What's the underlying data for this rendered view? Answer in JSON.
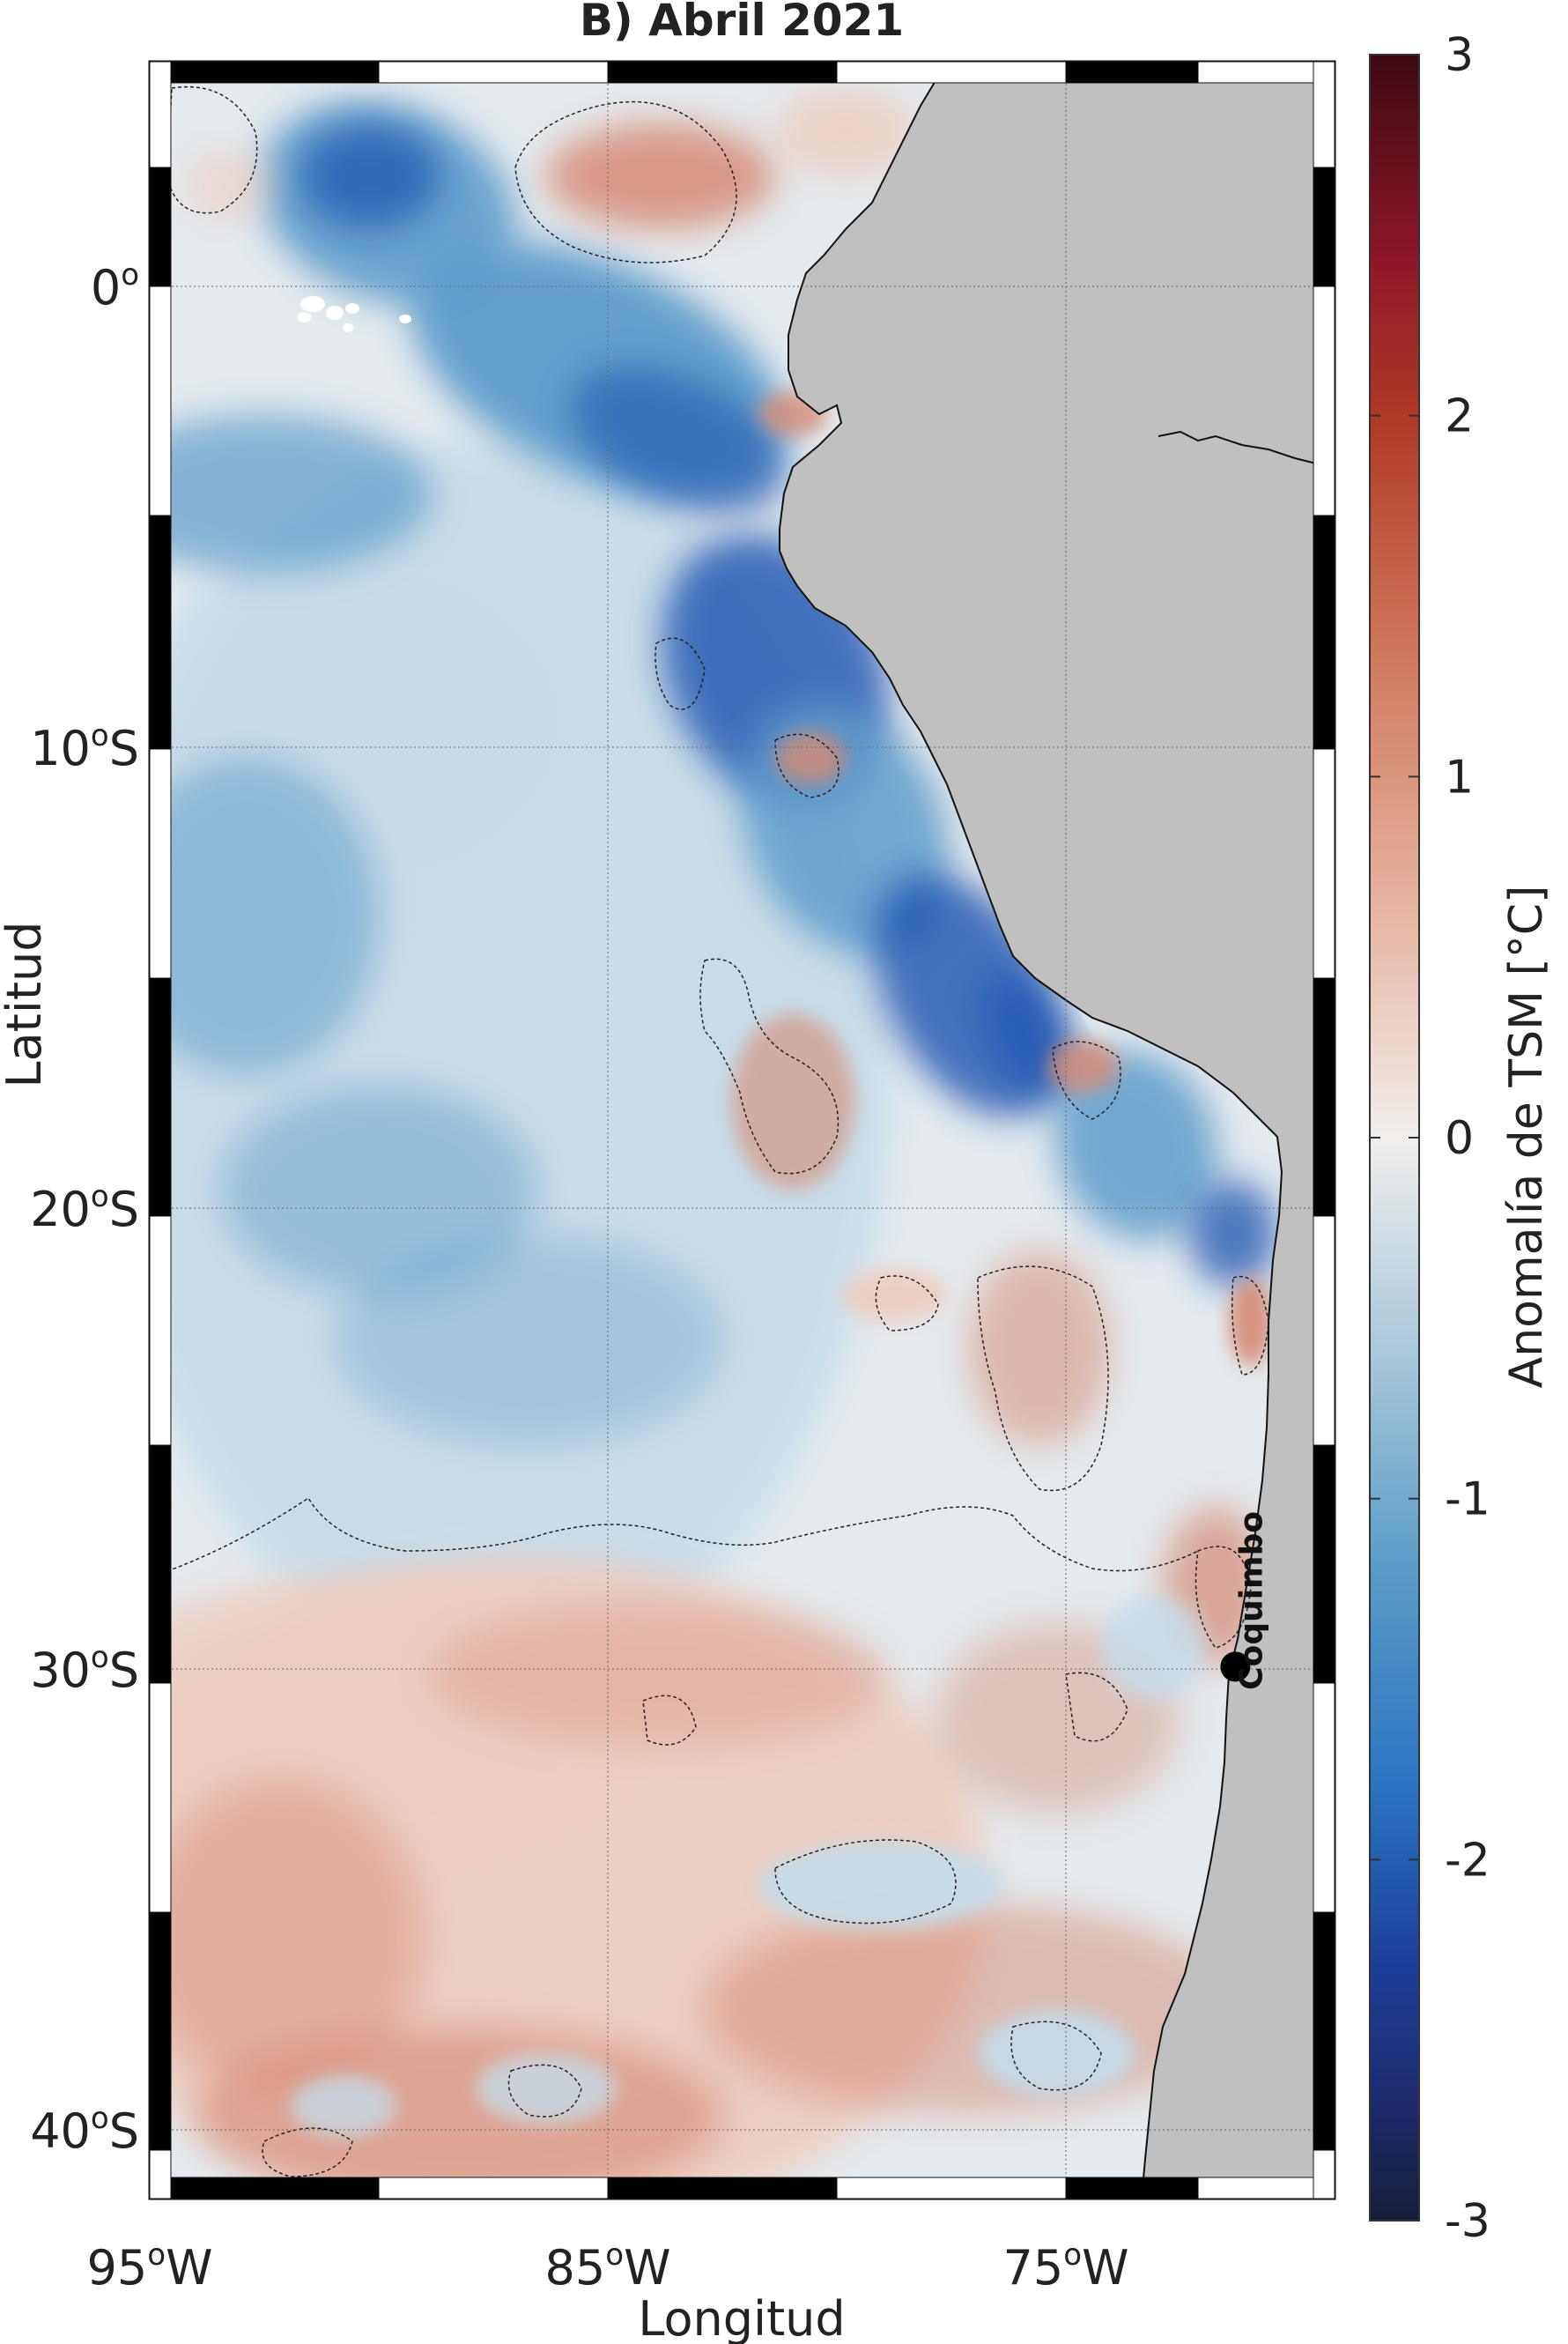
{
  "title": "B) Abril 2021",
  "axes": {
    "xlabel": "Longitud",
    "ylabel": "Latitud",
    "x_ticks": [
      {
        "lon": -95,
        "main": "95",
        "sup": "o",
        "dir": "W"
      },
      {
        "lon": -85,
        "main": "85",
        "sup": "o",
        "dir": "W"
      },
      {
        "lon": -75,
        "main": "75",
        "sup": "o",
        "dir": "W"
      }
    ],
    "y_ticks": [
      {
        "lat": 0,
        "main": "0",
        "sup": "o",
        "dir": ""
      },
      {
        "lat": -10,
        "main": "10",
        "sup": "o",
        "dir": "S"
      },
      {
        "lat": -20,
        "main": "20",
        "sup": "o",
        "dir": "S"
      },
      {
        "lat": -30,
        "main": "30",
        "sup": "o",
        "dir": "S"
      },
      {
        "lat": -40,
        "main": "40",
        "sup": "o",
        "dir": "S"
      }
    ],
    "lon_range": [
      -95,
      -69.5
    ],
    "lat_range": [
      -40,
      5
    ],
    "grid": true
  },
  "colorbar": {
    "label": "Anomalía de TSM [°C]",
    "ticks": [
      "3",
      "2",
      "1",
      "0",
      "-1",
      "-2",
      "-3"
    ],
    "range": [
      -3,
      3
    ],
    "colormap": "balance"
  },
  "marker": {
    "name": "Coquimbo",
    "lon": -71.3,
    "lat": -29.95
  },
  "colors": {
    "land": "#c0c0c0",
    "cold_strong": "#1a52b0",
    "cold_mid": "#5f9ccb",
    "cold_weak": "#c6dbe8",
    "neutral": "#eceae8",
    "warm_weak": "#edccbf",
    "warm_mid": "#d68b74",
    "warm_strong": "#a32a26"
  }
}
